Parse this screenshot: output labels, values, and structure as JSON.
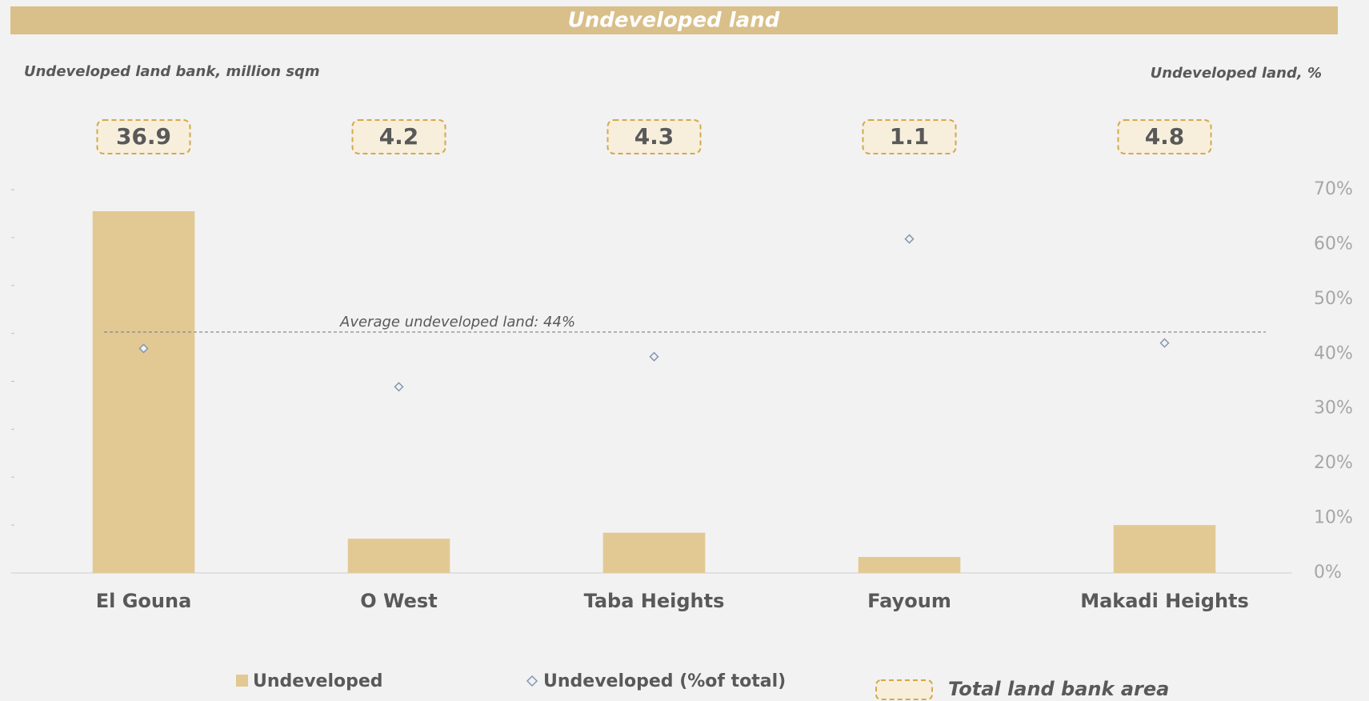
{
  "chart_data": {
    "type": "bar",
    "title": "Undeveloped land",
    "y_axis_label": "Undeveloped land bank, million sqm",
    "y2_axis_label": "Undeveloped land, %",
    "categories": [
      "El Gouna",
      "O West",
      "Taba Heights",
      "Fayoum",
      "Makadi Heights"
    ],
    "series": [
      {
        "name": "Undeveloped",
        "type": "bar",
        "color": "#e2c994",
        "values": [
          15.1,
          1.43,
          1.68,
          0.67,
          2.0
        ]
      },
      {
        "name": "Undeveloped (%of total)",
        "type": "scatter",
        "axis": "y2",
        "color": "#8497b0",
        "values": [
          41,
          34,
          39.5,
          61,
          42
        ]
      }
    ],
    "totals": {
      "name": "Total land bank area",
      "color": "#d4a84b",
      "values": [
        36.9,
        4.2,
        4.3,
        1.1,
        4.8
      ]
    },
    "annotations": [
      {
        "text": "Average undeveloped land: 44%",
        "value": 44,
        "axis": "y2"
      }
    ],
    "ylim": [
      0,
      16
    ],
    "yticks": [
      0,
      2,
      4,
      6,
      8,
      10,
      12,
      14,
      16
    ],
    "y2lim": [
      0,
      70
    ],
    "y2ticks": [
      {
        "value": 0,
        "label": "0%"
      },
      {
        "value": 10,
        "label": "10%"
      },
      {
        "value": 20,
        "label": "20%"
      },
      {
        "value": 30,
        "label": "30%"
      },
      {
        "value": 40,
        "label": "40%"
      },
      {
        "value": 50,
        "label": "50%"
      },
      {
        "value": 60,
        "label": "60%"
      },
      {
        "value": 70,
        "label": "70%"
      }
    ]
  }
}
